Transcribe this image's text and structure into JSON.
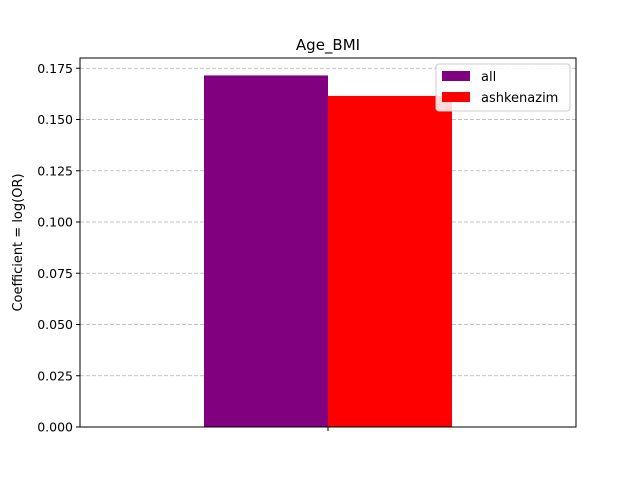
{
  "chart_data": {
    "type": "bar",
    "title": "Age_BMI",
    "xlabel": "",
    "ylabel": "Coefficient = log(OR)",
    "categories": [
      ""
    ],
    "series": [
      {
        "name": "all",
        "color": "#800080",
        "values": [
          0.1715
        ]
      },
      {
        "name": "ashkenazim",
        "color": "#ff0000",
        "values": [
          0.1615
        ]
      }
    ],
    "ylim": [
      0,
      0.18
    ],
    "yticks": [
      0.0,
      0.025,
      0.05,
      0.075,
      0.1,
      0.125,
      0.15,
      0.175
    ],
    "ytick_labels": [
      "0.000",
      "0.025",
      "0.050",
      "0.075",
      "0.100",
      "0.125",
      "0.150",
      "0.175"
    ],
    "grid": {
      "y": true,
      "style": "dashed",
      "color": "#b0b0b0"
    },
    "legend_position": "top-right"
  }
}
